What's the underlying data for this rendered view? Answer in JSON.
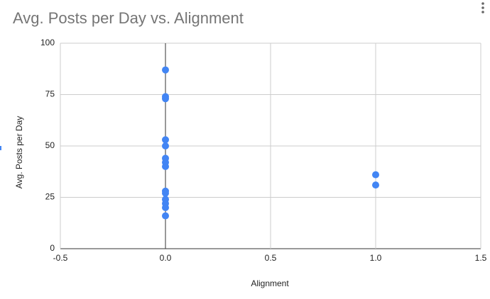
{
  "chart_data": {
    "type": "scatter",
    "title": "Avg. Posts per Day vs. Alignment",
    "x_label": "Alignment",
    "y_label": "Avg. Posts per Day",
    "color": "#4285f4",
    "x": [
      0,
      0,
      0,
      0,
      0,
      0,
      0,
      0,
      0,
      0,
      0,
      0,
      0,
      0,
      1,
      1
    ],
    "values": [
      87,
      74,
      73,
      53,
      50,
      44,
      42,
      40,
      28,
      27,
      24,
      22,
      20,
      16,
      36,
      31
    ],
    "xlim": [
      -0.5,
      1.5
    ],
    "xticks": [
      -0.5,
      {
        "value": 0,
        "label": "0.0"
      },
      0.5,
      {
        "value": 1,
        "label": "1.0"
      },
      1.5
    ],
    "ylim": [
      0,
      100
    ],
    "yticks": [
      0,
      25,
      50,
      75,
      100
    ],
    "grid": true
  }
}
